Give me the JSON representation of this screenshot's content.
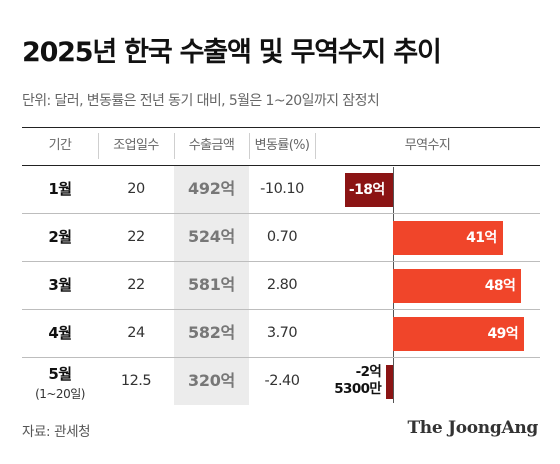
{
  "title": "2025년 한국 수출액 및 무역수지 추이",
  "subtitle": "단위: 달러, 변동률은 전년 동기 대비, 5월은 1~20일까지 잠정치",
  "headers": {
    "period": "기간",
    "days": "조업일수",
    "amount": "수출금액",
    "change": "변동률(%)",
    "balance": "무역수지"
  },
  "chart_data": {
    "type": "table",
    "columns": [
      "기간",
      "조업일수",
      "수출금액",
      "변동률(%)",
      "무역수지"
    ],
    "rows": [
      {
        "month": "1월",
        "sub": "",
        "days": "20",
        "amount": "492억",
        "change": "-10.10",
        "balance": -18,
        "balance_label": "-18억"
      },
      {
        "month": "2월",
        "sub": "",
        "days": "22",
        "amount": "524억",
        "change": "0.70",
        "balance": 41,
        "balance_label": "41억"
      },
      {
        "month": "3월",
        "sub": "",
        "days": "22",
        "amount": "581억",
        "change": "2.80",
        "balance": 48,
        "balance_label": "48억"
      },
      {
        "month": "4월",
        "sub": "",
        "days": "24",
        "amount": "582억",
        "change": "3.70",
        "balance": 49,
        "balance_label": "49억"
      },
      {
        "month": "5월",
        "sub": "(1~20일)",
        "days": "12.5",
        "amount": "320억",
        "change": "-2.40",
        "balance": -2.53,
        "balance_label": "-2억\n5300만"
      }
    ],
    "balance_unit": "억 달러",
    "colors": {
      "positive": "#f0452a",
      "negative": "#8b1414"
    }
  },
  "footer": {
    "source": "자료: 관세청",
    "logo": "The JoongAng"
  }
}
